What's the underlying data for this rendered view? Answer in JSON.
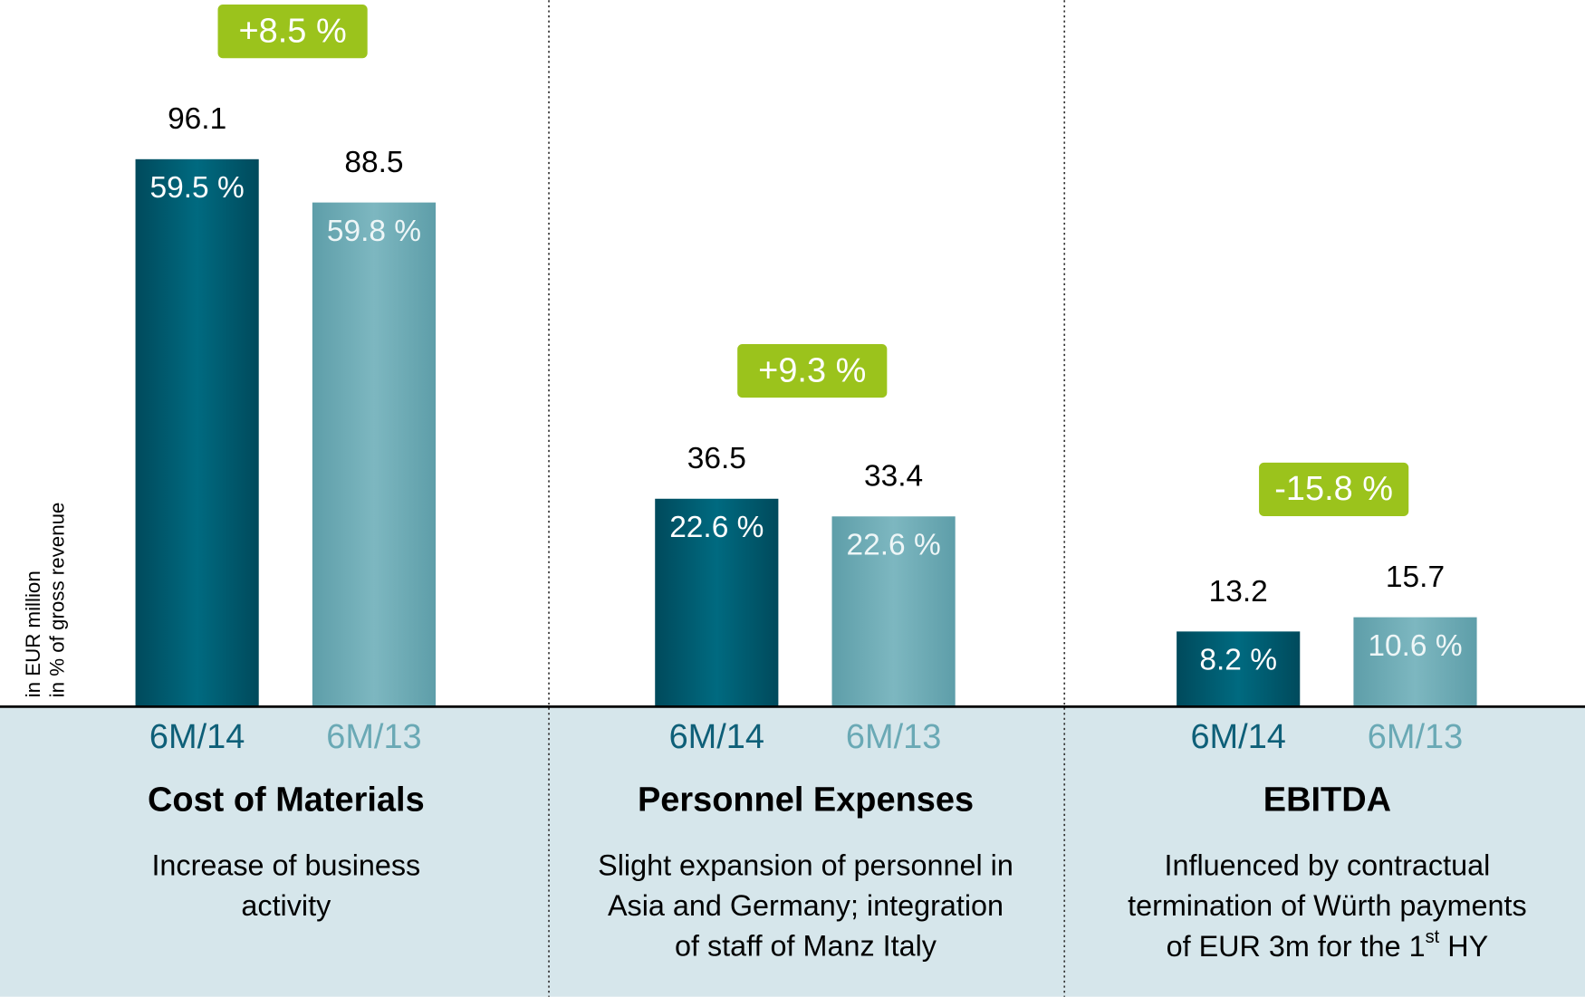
{
  "chart_data": {
    "type": "bar",
    "axis_label": [
      "in EUR million",
      "in % of gross revenue"
    ],
    "categories": [
      "Cost of Materials",
      "Personnel Expenses",
      "EBITDA"
    ],
    "series": [
      {
        "name": "6M/14",
        "color": "#005f73",
        "values": [
          96.1,
          36.5,
          13.2
        ],
        "share_labels": [
          "59.5 %",
          "22.6 %",
          "8.2 %"
        ]
      },
      {
        "name": "6M/13",
        "color": "#6eabb5",
        "values": [
          88.5,
          33.4,
          15.7
        ],
        "share_labels": [
          "59.8 %",
          "22.6 %",
          "10.6 %"
        ]
      }
    ],
    "changes": [
      "+8.5 %",
      "+9.3 %",
      "-15.8 %"
    ],
    "descriptions": [
      [
        "Increase of business",
        "activity"
      ],
      [
        "Slight expansion of personnel in",
        "Asia and Germany; integration",
        "of staff of Manz Italy"
      ],
      [
        "Influenced by contractual",
        "termination of Würth payments",
        [
          "of EUR 3m for the 1",
          "st",
          " HY"
        ]
      ]
    ],
    "ylim": [
      0,
      124
    ],
    "change_color": "#9bc31c"
  }
}
